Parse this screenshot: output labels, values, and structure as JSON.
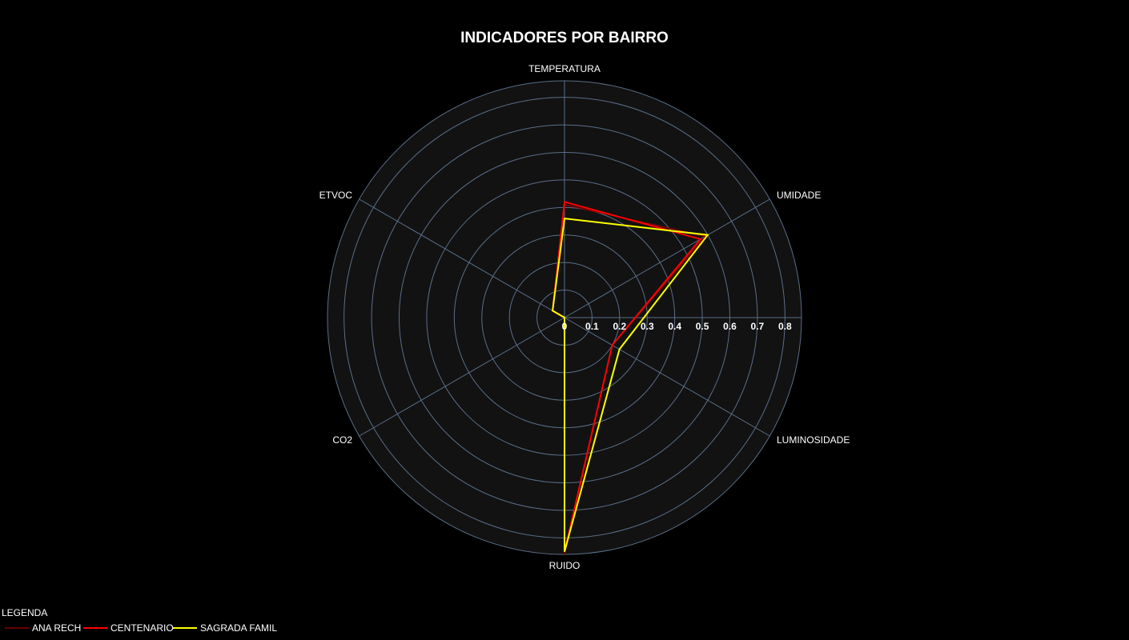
{
  "chart_data": {
    "type": "radar",
    "title": "INDICADORES POR BAIRRO",
    "axes": [
      "TEMPERATURA",
      "UMIDADE",
      "LUMINOSIDADE",
      "RUIDO",
      "CO2",
      "ETVOC"
    ],
    "radial_range": [
      0,
      0.86
    ],
    "radial_ticks": [
      "0",
      "0.1",
      "0.2",
      "0.3",
      "0.4",
      "0.5",
      "0.6",
      "0.7",
      "0.8"
    ],
    "grid": true,
    "legend": {
      "title": "LEGENDA",
      "placement": "bottom-left"
    },
    "series": [
      {
        "name": "ANA RECH",
        "color": "#8b0000",
        "values": [
          0.41,
          0.59,
          0.2,
          0.86,
          0.0,
          0.05
        ]
      },
      {
        "name": "CENTENARIO",
        "color": "#ff0000",
        "values": [
          0.42,
          0.57,
          0.2,
          0.85,
          0.0,
          0.05
        ]
      },
      {
        "name": "SAGRADA FAMIL",
        "color": "#ffff00",
        "values": [
          0.36,
          0.6,
          0.23,
          0.85,
          0.0,
          0.05
        ]
      }
    ]
  },
  "colors": {
    "background": "#000000",
    "plot_background": "#121212",
    "grid": "#5a6e88",
    "text": "#ffffff"
  }
}
